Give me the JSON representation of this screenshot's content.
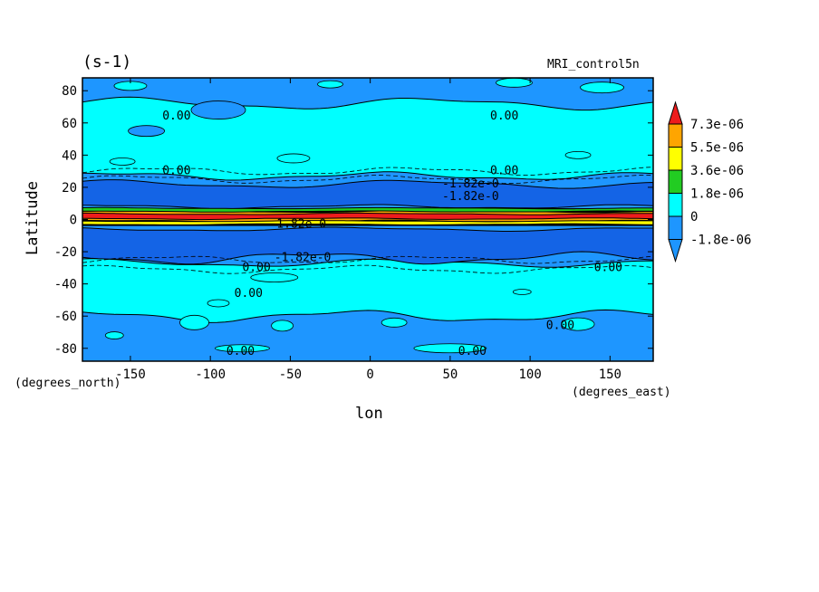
{
  "chart_data": {
    "type": "contour",
    "units_label": "(s-1)",
    "run_label": "MRI_control5n",
    "xlabel": "lon",
    "ylabel": "Latitude",
    "x_units": "(degrees_east)",
    "y_units": "(degrees_north)",
    "xlim": [
      -180,
      177
    ],
    "ylim": [
      -88,
      88
    ],
    "x_ticks": [
      -150,
      -100,
      -50,
      0,
      50,
      100,
      150
    ],
    "y_ticks": [
      80,
      60,
      40,
      20,
      0,
      -20,
      -40,
      -60,
      -80
    ],
    "colorbar": {
      "levels": [
        "7.3e-06",
        "5.5e-06",
        "3.6e-06",
        "1.8e-06",
        "0",
        "-1.8e-06"
      ],
      "colors": [
        "#ee1c1c",
        "#ffa500",
        "#ffff00",
        "#22cc22",
        "#00ffff",
        "#1e96ff",
        "#1464e6"
      ],
      "extend": "both"
    },
    "zonal_bands": [
      {
        "lat_from": 88,
        "lat_to": 72,
        "range": "-1.8e-06 to 0"
      },
      {
        "lat_from": 72,
        "lat_to": 27,
        "range": "0 to 1.8e-06"
      },
      {
        "lat_from": 27,
        "lat_to": 6,
        "range": "below -1.8e-06"
      },
      {
        "lat_from": 6,
        "lat_to": -4,
        "range": "up to 7.3e-06"
      },
      {
        "lat_from": -4,
        "lat_to": -27,
        "range": "below -1.8e-06"
      },
      {
        "lat_from": -27,
        "lat_to": -60,
        "range": "0 to 1.8e-06"
      },
      {
        "lat_from": -60,
        "lat_to": -88,
        "range": "-1.8e-06 to 0"
      }
    ],
    "contour_labels": [
      {
        "text": "0.00",
        "lon": -130,
        "lat": 62
      },
      {
        "text": "0.00",
        "lon": 75,
        "lat": 62
      },
      {
        "text": "0.00",
        "lon": -130,
        "lat": 28
      },
      {
        "text": "0.00",
        "lon": 75,
        "lat": 28
      },
      {
        "text": "-1.82e-0",
        "lon": 45,
        "lat": 20
      },
      {
        "text": "-1.82e-0",
        "lon": 45,
        "lat": 12
      },
      {
        "text": "-1.82e-0",
        "lon": -63,
        "lat": -5
      },
      {
        "text": "-1.82e-0",
        "lon": -60,
        "lat": -26
      },
      {
        "text": "0.00",
        "lon": -80,
        "lat": -32
      },
      {
        "text": "0.00",
        "lon": -85,
        "lat": -48
      },
      {
        "text": "0.00",
        "lon": 140,
        "lat": -32
      },
      {
        "text": "0.00",
        "lon": 110,
        "lat": -68
      },
      {
        "text": "0.00",
        "lon": -90,
        "lat": -84
      },
      {
        "text": "0.00",
        "lon": 55,
        "lat": -84
      }
    ]
  }
}
